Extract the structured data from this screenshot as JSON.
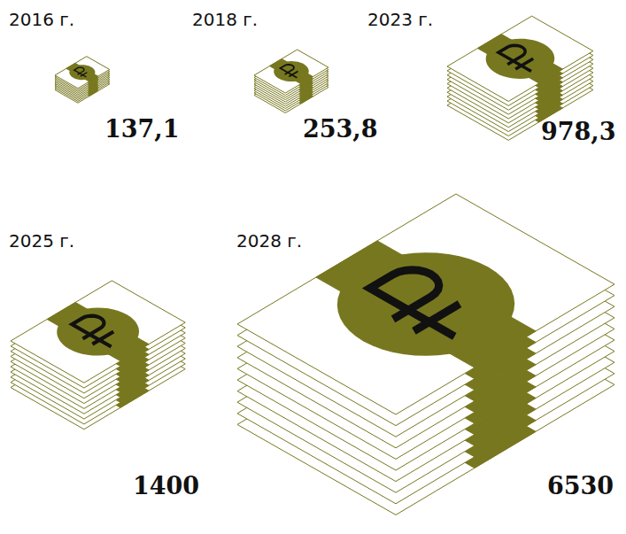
{
  "chart_data": {
    "type": "pictogram",
    "categories": [
      "2016 г.",
      "2018 г.",
      "2023 г.",
      "2025 г.",
      "2028 г."
    ],
    "values": [
      137.1,
      253.8,
      978.3,
      1400,
      6530
    ],
    "value_labels": [
      "137,1",
      "253,8",
      "978,3",
      "1400",
      "6530"
    ],
    "data_labels": true,
    "tick_labels": false,
    "color": "#77771f"
  }
}
